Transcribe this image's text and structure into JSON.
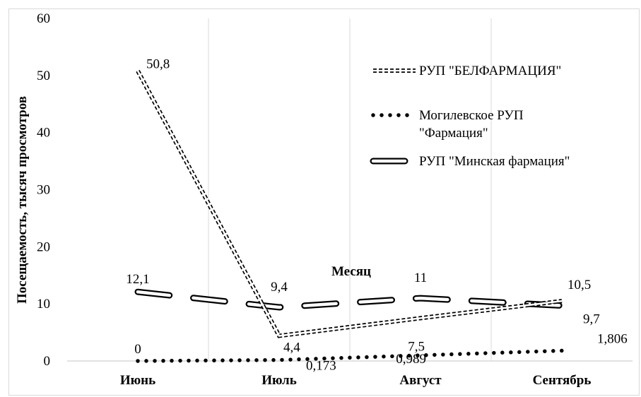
{
  "chart_data": {
    "type": "line",
    "categories": [
      "Июнь",
      "Июль",
      "Август",
      "Сентябрь"
    ],
    "series": [
      {
        "name": "РУП \"БЕЛФАРМАЦИЯ\"",
        "style": "double-dashed",
        "values": [
          50.8,
          4.4,
          7.5,
          10.5
        ],
        "labels": [
          "50,8",
          "4,4",
          "7,5",
          "10,5"
        ]
      },
      {
        "name": "Могилевское РУП \"Фармация\"",
        "style": "dotted",
        "values": [
          0,
          0.173,
          0.989,
          1.806
        ],
        "labels": [
          "0",
          "0,173",
          "0,989",
          "1,806"
        ]
      },
      {
        "name": "РУП \"Минская фармация\"",
        "style": "outlined-long-dash",
        "values": [
          12.1,
          9.4,
          11,
          9.7
        ],
        "labels": [
          "12,1",
          "9,4",
          "11",
          "9,7"
        ]
      }
    ],
    "xlabel": "Месяц",
    "ylabel": "Посещаемость, тысяч просмотров",
    "ylim": [
      0,
      60
    ],
    "yticks": [
      "0",
      "10",
      "20",
      "30",
      "40",
      "50",
      "60"
    ],
    "grid": "vertical",
    "legend_position": "top-right",
    "colors": {
      "line": "#000000",
      "grid": "#d9d9d9",
      "background": "#ffffff"
    }
  }
}
